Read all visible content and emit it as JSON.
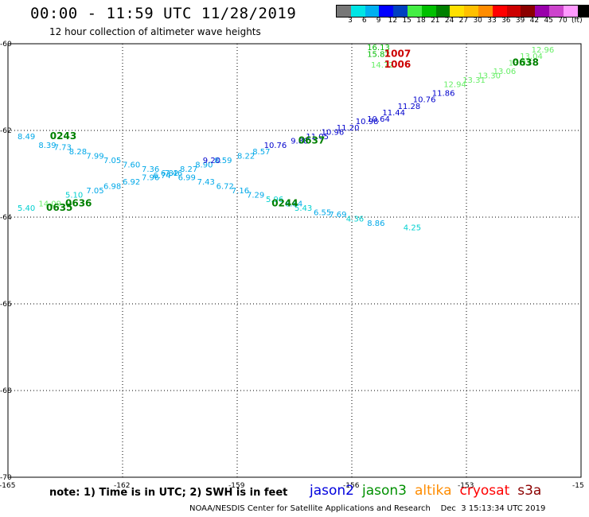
{
  "header": {
    "title": "00:00 - 11:59 UTC 11/28/2019",
    "subtitle": "12 hour collection of altimeter wave heights"
  },
  "legend": {
    "colors": [
      "#777777",
      "#00e5e5",
      "#00b0f0",
      "#0000ff",
      "#0040c0",
      "#44ee44",
      "#00c000",
      "#008000",
      "#ffe000",
      "#ffc000",
      "#ff8c00",
      "#ff0000",
      "#cc0000",
      "#8b0000",
      "#9900aa",
      "#cc44cc",
      "#ff99ff",
      "#000000"
    ],
    "labels": [
      "3",
      "6",
      "9",
      "12",
      "15",
      "18",
      "21",
      "24",
      "27",
      "30",
      "33",
      "36",
      "39",
      "42",
      "45",
      "70"
    ],
    "unit": "(ft)"
  },
  "axes": {
    "lat_labels": [
      "-60",
      "-62",
      "-64",
      "-66",
      "-68",
      "-70"
    ],
    "lon_labels": [
      "-165",
      "-162",
      "-159",
      "-156",
      "-153",
      "-15"
    ]
  },
  "map_data": {
    "lon_range": [
      -165,
      -150
    ],
    "lat_range": [
      -70,
      -60
    ],
    "tracks": [
      {
        "sat": "jason3",
        "pass": "0243",
        "label_lon": -163.9,
        "label_lat": -62.2,
        "color": "#008000",
        "points": [
          {
            "lon": -164.75,
            "lat": -62.2,
            "v": "8.49"
          },
          {
            "lon": -164.2,
            "lat": -62.4,
            "v": "8.39"
          },
          {
            "lon": -163.8,
            "lat": -62.45,
            "v": "7.73"
          },
          {
            "lon": -163.4,
            "lat": -62.55,
            "v": "8.28"
          },
          {
            "lon": -162.95,
            "lat": -62.65,
            "v": "7.99"
          },
          {
            "lon": -162.5,
            "lat": -62.75,
            "v": "7.05"
          },
          {
            "lon": -162.0,
            "lat": -62.85,
            "v": "7.60"
          },
          {
            "lon": -161.5,
            "lat": -62.95,
            "v": "7.36"
          },
          {
            "lon": -161.0,
            "lat": -63.05,
            "v": "6.82"
          },
          {
            "lon": -160.55,
            "lat": -63.15,
            "v": "6.99"
          },
          {
            "lon": -160.05,
            "lat": -63.25,
            "v": "7.43"
          },
          {
            "lon": -159.55,
            "lat": -63.35,
            "v": "6.72"
          },
          {
            "lon": -159.15,
            "lat": -63.45,
            "v": "7.16"
          },
          {
            "lon": -158.75,
            "lat": -63.55,
            "v": "7.29"
          },
          {
            "lon": -158.25,
            "lat": -63.65,
            "v": "5.96"
          },
          {
            "lon": -157.75,
            "lat": -63.75,
            "v": "6.84"
          },
          {
            "lon": -157.5,
            "lat": -63.85,
            "v": "5.43"
          },
          {
            "lon": -157.0,
            "lat": -63.95,
            "v": "6.55"
          },
          {
            "lon": -156.6,
            "lat": -64.0,
            "v": "7.69"
          },
          {
            "lon": -156.15,
            "lat": -64.1,
            "v": "4.36"
          },
          {
            "lon": -155.6,
            "lat": -64.2,
            "v": "8.86"
          },
          {
            "lon": -154.65,
            "lat": -64.3,
            "v": "4.25"
          }
        ]
      },
      {
        "sat": "jason3",
        "pass": "0635",
        "label_lon": -164.0,
        "label_lat": -63.85,
        "color": "#008000",
        "points": [
          {
            "lon": -164.75,
            "lat": -63.85,
            "v": "5.40"
          },
          {
            "lon": -164.2,
            "lat": -63.75,
            "v": "14.09"
          },
          {
            "lon": -163.5,
            "lat": -63.55,
            "v": "5.10"
          },
          {
            "lon": -162.95,
            "lat": -63.45,
            "v": "7.05"
          },
          {
            "lon": -162.5,
            "lat": -63.35,
            "v": "6.98"
          },
          {
            "lon": -162.0,
            "lat": -63.25,
            "v": "6.92"
          },
          {
            "lon": -161.5,
            "lat": -63.15,
            "v": "7.96"
          },
          {
            "lon": -161.2,
            "lat": -63.1,
            "v": "6.74"
          },
          {
            "lon": -160.9,
            "lat": -63.05,
            "v": "7.46"
          },
          {
            "lon": -160.5,
            "lat": -62.95,
            "v": "8.27"
          },
          {
            "lon": -160.1,
            "lat": -62.85,
            "v": "8.90"
          },
          {
            "lon": -159.6,
            "lat": -62.75,
            "v": "8.59"
          },
          {
            "lon": -159.0,
            "lat": -62.65,
            "v": "8.22"
          },
          {
            "lon": -158.6,
            "lat": -62.55,
            "v": "8.57"
          }
        ]
      },
      {
        "sat": "jason2",
        "pass": "0636",
        "label_lon": -163.5,
        "label_lat": -63.75,
        "color": "#008000",
        "points": [
          {
            "lon": -159.9,
            "lat": -62.75,
            "v": "9.20"
          },
          {
            "lon": -158.3,
            "lat": -62.4,
            "v": "10.76"
          },
          {
            "lon": -157.6,
            "lat": -62.3,
            "v": "9.88"
          },
          {
            "lon": -157.2,
            "lat": -62.2,
            "v": "11.05"
          },
          {
            "lon": -156.8,
            "lat": -62.1,
            "v": "10.96"
          },
          {
            "lon": -156.4,
            "lat": -62.0,
            "v": "11.20"
          },
          {
            "lon": -155.9,
            "lat": -61.85,
            "v": "10.98"
          },
          {
            "lon": -155.6,
            "lat": -61.8,
            "v": "10.64"
          },
          {
            "lon": -155.2,
            "lat": -61.65,
            "v": "11.44"
          },
          {
            "lon": -154.8,
            "lat": -61.5,
            "v": "11.28"
          },
          {
            "lon": -154.4,
            "lat": -61.35,
            "v": "10.76"
          },
          {
            "lon": -153.9,
            "lat": -61.2,
            "v": "11.86"
          }
        ]
      },
      {
        "sat": "jason3",
        "pass": "0637",
        "label_lon": -157.4,
        "label_lat": -62.3,
        "color": "#008000",
        "points": []
      },
      {
        "sat": "jason3",
        "pass": "0638",
        "label_lon": -151.8,
        "label_lat": -60.5,
        "color": "#008000",
        "points": [
          {
            "lon": -153.6,
            "lat": -61.0,
            "v": "12.94"
          },
          {
            "lon": -153.1,
            "lat": -60.9,
            "v": "13.31"
          },
          {
            "lon": -152.7,
            "lat": -60.8,
            "v": "13.30"
          },
          {
            "lon": -152.3,
            "lat": -60.7,
            "v": "13.06"
          },
          {
            "lon": -151.9,
            "lat": -60.5,
            "v": "13.37"
          },
          {
            "lon": -151.6,
            "lat": -60.35,
            "v": "13.04"
          },
          {
            "lon": -151.3,
            "lat": -60.2,
            "v": "12.96"
          }
        ]
      },
      {
        "sat": "jason3",
        "pass": "0244",
        "label_lon": -158.1,
        "label_lat": -63.75,
        "color": "#008000",
        "points": []
      },
      {
        "sat": "cryosat",
        "pass": "1007",
        "label_lon": -155.15,
        "label_lat": -60.3,
        "color": "#cc0000",
        "points": [
          {
            "lon": -155.6,
            "lat": -60.15,
            "v": "16.13"
          },
          {
            "lon": -155.6,
            "lat": -60.3,
            "v": "15.82"
          },
          {
            "lon": -155.5,
            "lat": -60.55,
            "v": "14.72"
          }
        ]
      },
      {
        "sat": "cryosat",
        "pass": "1006",
        "label_lon": -155.15,
        "label_lat": -60.55,
        "color": "#cc0000",
        "points": []
      }
    ]
  },
  "note": "note: 1) Time is in UTC; 2) SWH is in feet",
  "satellites": [
    {
      "name": "jason2",
      "color": "#0000dd"
    },
    {
      "name": "jason3",
      "color": "#009000"
    },
    {
      "name": "altika",
      "color": "#ff8c00"
    },
    {
      "name": "cryosat",
      "color": "#ff0000"
    },
    {
      "name": "s3a",
      "color": "#8b0000"
    }
  ],
  "footer": "NOAA/NESDIS Center for Satellite Applications and Research    Dec  3 15:13:34 UTC 2019"
}
